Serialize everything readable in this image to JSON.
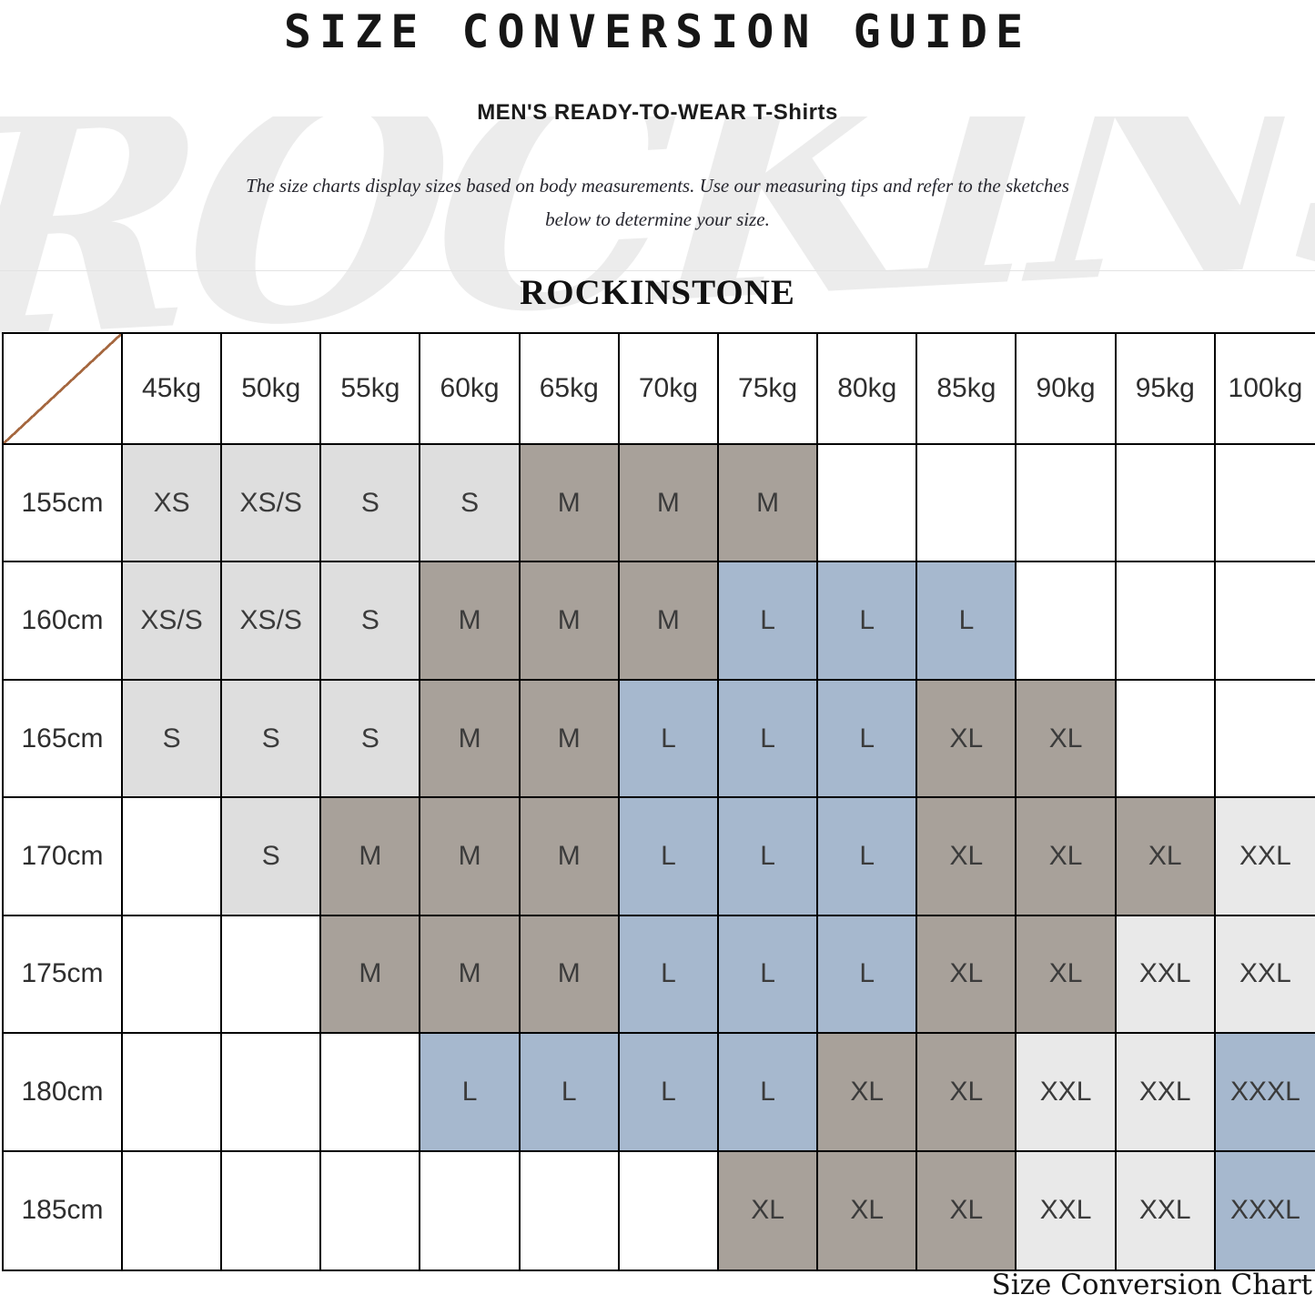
{
  "page": {
    "title": "SIZE CONVERSION GUIDE",
    "subtitle": "MEN'S READY-TO-WEAR T-Shirts",
    "description_line1": "The size charts display sizes based on body measurements. Use our measuring tips and refer to the sketches",
    "description_line2": "below to determine your size.",
    "brand": "ROCKINSTONE",
    "watermark": "ROCKINSTONE",
    "caption": "Size Conversion Chart"
  },
  "colors": {
    "fill_light_gray": "#dedede",
    "fill_lighter_gray": "#e9e9e9",
    "fill_taupe": "#a8a19a",
    "fill_blue": "#a6b8ce",
    "diagonal_line": "#a5673f",
    "grid_border": "#000000",
    "watermark": "#ececec"
  },
  "table": {
    "col_headers": [
      "45kg",
      "50kg",
      "55kg",
      "60kg",
      "65kg",
      "70kg",
      "75kg",
      "80kg",
      "85kg",
      "90kg",
      "95kg",
      "100kg"
    ],
    "rows": [
      {
        "height": "155cm",
        "cells": [
          {
            "label": "XS",
            "fill": "g1"
          },
          {
            "label": "XS/S",
            "fill": "g1"
          },
          {
            "label": "S",
            "fill": "g1"
          },
          {
            "label": "S",
            "fill": "g1"
          },
          {
            "label": "M",
            "fill": "t"
          },
          {
            "label": "M",
            "fill": "t"
          },
          {
            "label": "M",
            "fill": "t"
          },
          {
            "label": "",
            "fill": ""
          },
          {
            "label": "",
            "fill": ""
          },
          {
            "label": "",
            "fill": ""
          },
          {
            "label": "",
            "fill": ""
          },
          {
            "label": "",
            "fill": ""
          }
        ]
      },
      {
        "height": "160cm",
        "cells": [
          {
            "label": "XS/S",
            "fill": "g1"
          },
          {
            "label": "XS/S",
            "fill": "g1"
          },
          {
            "label": "S",
            "fill": "g1"
          },
          {
            "label": "M",
            "fill": "t"
          },
          {
            "label": "M",
            "fill": "t"
          },
          {
            "label": "M",
            "fill": "t"
          },
          {
            "label": "L",
            "fill": "b"
          },
          {
            "label": "L",
            "fill": "b"
          },
          {
            "label": "L",
            "fill": "b"
          },
          {
            "label": "",
            "fill": ""
          },
          {
            "label": "",
            "fill": ""
          },
          {
            "label": "",
            "fill": ""
          }
        ]
      },
      {
        "height": "165cm",
        "cells": [
          {
            "label": "S",
            "fill": "g1"
          },
          {
            "label": "S",
            "fill": "g1"
          },
          {
            "label": "S",
            "fill": "g1"
          },
          {
            "label": "M",
            "fill": "t"
          },
          {
            "label": "M",
            "fill": "t"
          },
          {
            "label": "L",
            "fill": "b"
          },
          {
            "label": "L",
            "fill": "b"
          },
          {
            "label": "L",
            "fill": "b"
          },
          {
            "label": "XL",
            "fill": "t"
          },
          {
            "label": "XL",
            "fill": "t"
          },
          {
            "label": "",
            "fill": ""
          },
          {
            "label": "",
            "fill": ""
          }
        ]
      },
      {
        "height": "170cm",
        "cells": [
          {
            "label": "",
            "fill": ""
          },
          {
            "label": "S",
            "fill": "g1"
          },
          {
            "label": "M",
            "fill": "t"
          },
          {
            "label": "M",
            "fill": "t"
          },
          {
            "label": "M",
            "fill": "t"
          },
          {
            "label": "L",
            "fill": "b"
          },
          {
            "label": "L",
            "fill": "b"
          },
          {
            "label": "L",
            "fill": "b"
          },
          {
            "label": "XL",
            "fill": "t"
          },
          {
            "label": "XL",
            "fill": "t"
          },
          {
            "label": "XL",
            "fill": "t"
          },
          {
            "label": "XXL",
            "fill": "g2"
          }
        ]
      },
      {
        "height": "175cm",
        "cells": [
          {
            "label": "",
            "fill": ""
          },
          {
            "label": "",
            "fill": ""
          },
          {
            "label": "M",
            "fill": "t"
          },
          {
            "label": "M",
            "fill": "t"
          },
          {
            "label": "M",
            "fill": "t"
          },
          {
            "label": "L",
            "fill": "b"
          },
          {
            "label": "L",
            "fill": "b"
          },
          {
            "label": "L",
            "fill": "b"
          },
          {
            "label": "XL",
            "fill": "t"
          },
          {
            "label": "XL",
            "fill": "t"
          },
          {
            "label": "XXL",
            "fill": "g2"
          },
          {
            "label": "XXL",
            "fill": "g2"
          }
        ]
      },
      {
        "height": "180cm",
        "cells": [
          {
            "label": "",
            "fill": ""
          },
          {
            "label": "",
            "fill": ""
          },
          {
            "label": "",
            "fill": ""
          },
          {
            "label": "L",
            "fill": "b"
          },
          {
            "label": "L",
            "fill": "b"
          },
          {
            "label": "L",
            "fill": "b"
          },
          {
            "label": "L",
            "fill": "b"
          },
          {
            "label": "XL",
            "fill": "t"
          },
          {
            "label": "XL",
            "fill": "t"
          },
          {
            "label": "XXL",
            "fill": "g2"
          },
          {
            "label": "XXL",
            "fill": "g2"
          },
          {
            "label": "XXXL",
            "fill": "b"
          }
        ]
      },
      {
        "height": "185cm",
        "cells": [
          {
            "label": "",
            "fill": ""
          },
          {
            "label": "",
            "fill": ""
          },
          {
            "label": "",
            "fill": ""
          },
          {
            "label": "",
            "fill": ""
          },
          {
            "label": "",
            "fill": ""
          },
          {
            "label": "",
            "fill": ""
          },
          {
            "label": "XL",
            "fill": "t"
          },
          {
            "label": "XL",
            "fill": "t"
          },
          {
            "label": "XL",
            "fill": "t"
          },
          {
            "label": "XXL",
            "fill": "g2"
          },
          {
            "label": "XXL",
            "fill": "g2"
          },
          {
            "label": "XXXL",
            "fill": "b"
          }
        ]
      }
    ]
  },
  "chart_data": {
    "type": "table",
    "title": "SIZE CONVERSION GUIDE",
    "subtitle": "MEN'S READY-TO-WEAR T-Shirts",
    "x_axis_label": "weight",
    "y_axis_label": "height",
    "columns_weight_kg": [
      45,
      50,
      55,
      60,
      65,
      70,
      75,
      80,
      85,
      90,
      95,
      100
    ],
    "rows_height_cm": [
      155,
      160,
      165,
      170,
      175,
      180,
      185
    ],
    "cells": [
      [
        "XS",
        "XS/S",
        "S",
        "S",
        "M",
        "M",
        "M",
        "",
        "",
        "",
        "",
        ""
      ],
      [
        "XS/S",
        "XS/S",
        "S",
        "M",
        "M",
        "M",
        "L",
        "L",
        "L",
        "",
        "",
        ""
      ],
      [
        "S",
        "S",
        "S",
        "M",
        "M",
        "L",
        "L",
        "L",
        "XL",
        "XL",
        "",
        ""
      ],
      [
        "",
        "S",
        "M",
        "M",
        "M",
        "L",
        "L",
        "L",
        "XL",
        "XL",
        "XL",
        "XXL"
      ],
      [
        "",
        "",
        "M",
        "M",
        "M",
        "L",
        "L",
        "L",
        "XL",
        "XL",
        "XXL",
        "XXL"
      ],
      [
        "",
        "",
        "",
        "L",
        "L",
        "L",
        "L",
        "XL",
        "XL",
        "XXL",
        "XXL",
        "XXXL"
      ],
      [
        "",
        "",
        "",
        "",
        "",
        "",
        "XL",
        "XL",
        "XL",
        "XXL",
        "XXL",
        "XXXL"
      ]
    ],
    "legend": "cell shading groups: light gray = XS/S sizes, taupe gray = M and XL sizes, blue = L and XXXL sizes, lightest gray = XXL sizes"
  }
}
